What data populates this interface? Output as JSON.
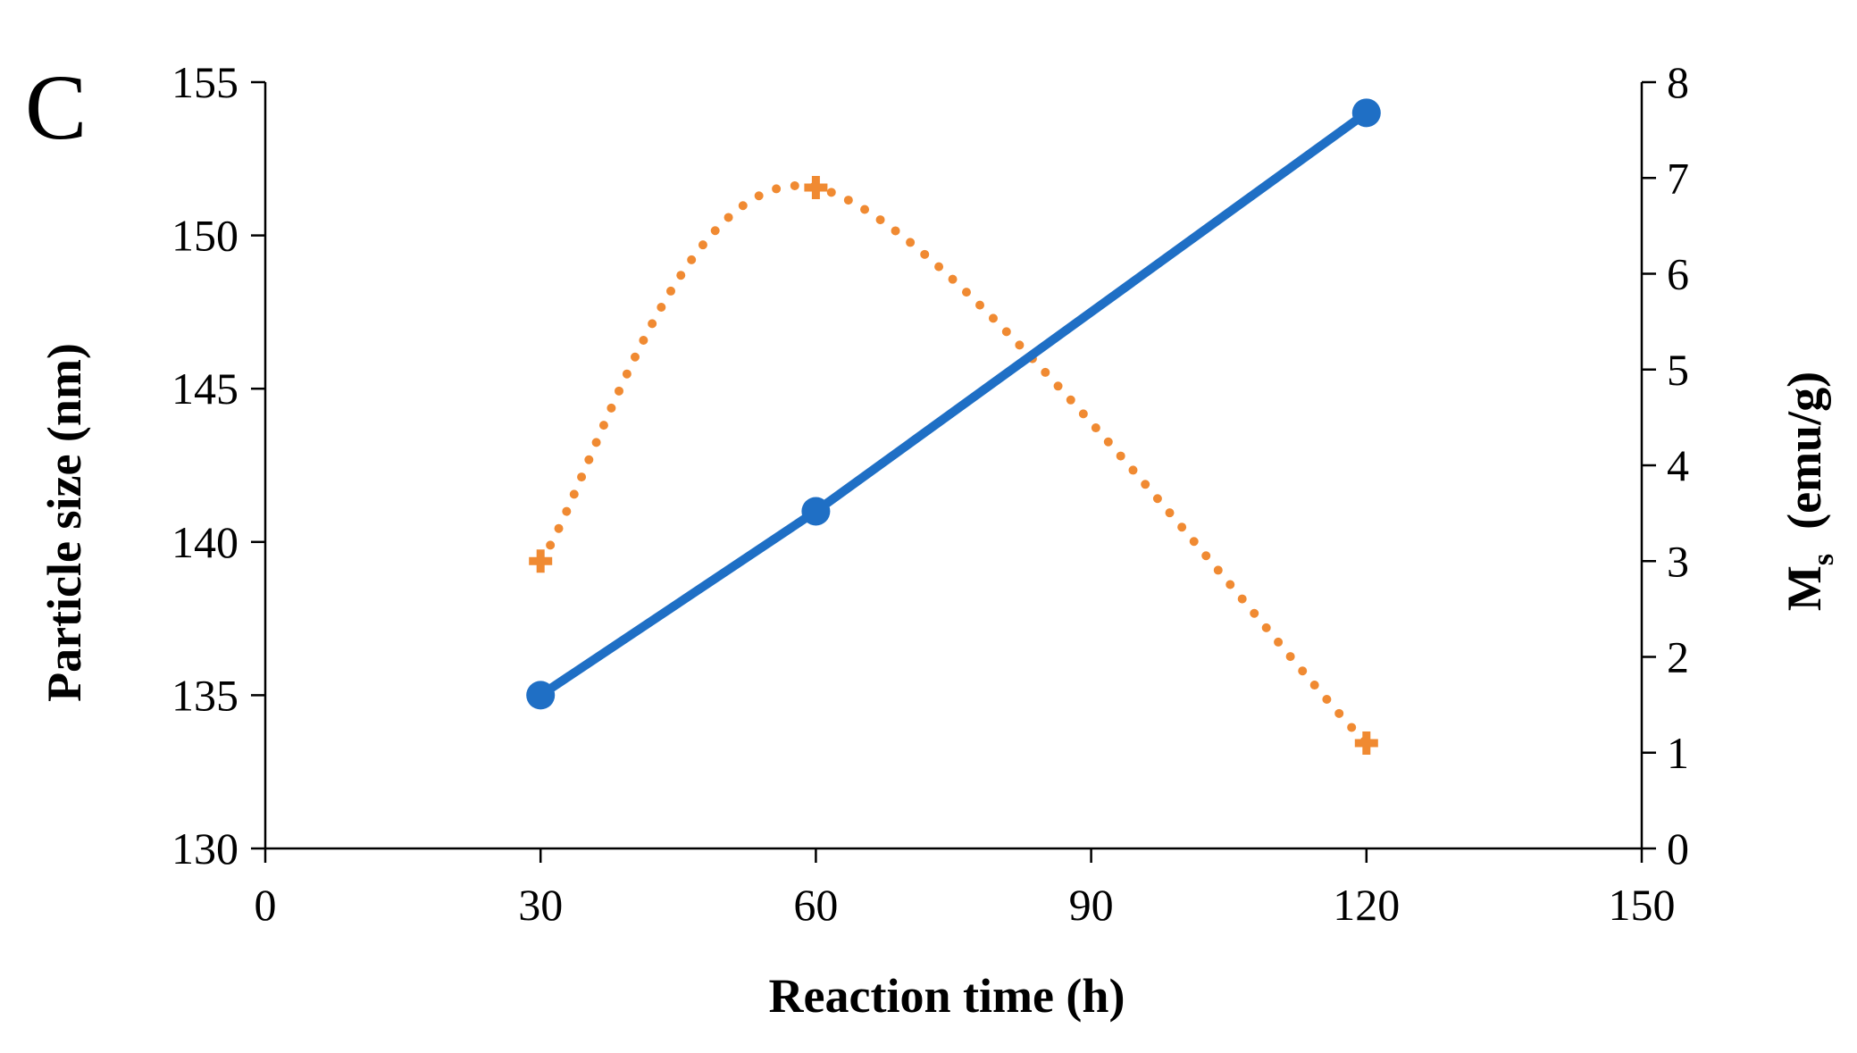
{
  "panel_label": "C",
  "colors": {
    "size_series": "#1f6fc5",
    "ms_series": "#f08a32",
    "axis": "#000000"
  },
  "chart_data": {
    "type": "line",
    "title": "",
    "xlabel": "Reaction time (h)",
    "ylabel": "Particle size (nm)",
    "y2label": {
      "main": "M",
      "subscript": "s",
      "rest": "  (emu/g)"
    },
    "xlim": [
      0,
      150
    ],
    "ylim": [
      130,
      155
    ],
    "y2lim": [
      0,
      8
    ],
    "xticks": [
      "0",
      "30",
      "60",
      "90",
      "120",
      "150"
    ],
    "yticks": [
      "130",
      "135",
      "140",
      "145",
      "150",
      "155"
    ],
    "y2ticks": [
      "0",
      "1",
      "2",
      "3",
      "4",
      "5",
      "6",
      "7",
      "8"
    ],
    "legend": "none",
    "series": [
      {
        "name": "Particle size",
        "axis": "left",
        "style": "solid line with circle markers",
        "x": [
          30,
          60,
          120
        ],
        "y": [
          135,
          141,
          154
        ]
      },
      {
        "name": "Ms",
        "axis": "right",
        "style": "dotted smooth line with cross markers",
        "x": [
          30,
          60,
          120
        ],
        "y": [
          3.0,
          6.9,
          1.1
        ]
      }
    ]
  }
}
